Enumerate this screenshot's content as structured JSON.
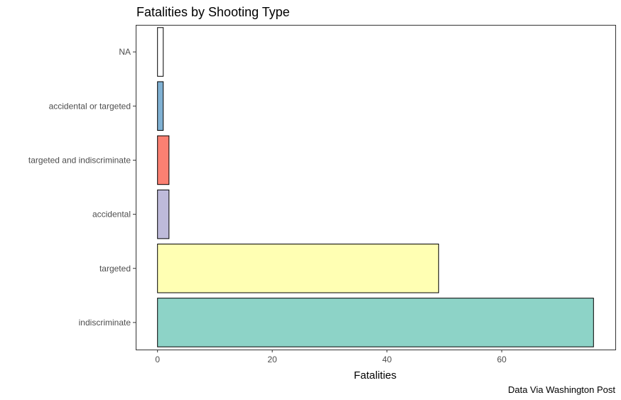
{
  "chart_data": {
    "type": "bar",
    "orientation": "horizontal",
    "title": "Fatalities by Shooting Type",
    "xlabel": "Fatalities",
    "ylabel": "",
    "caption": "Data Via Washington Post",
    "categories": [
      "NA",
      "accidental or targeted",
      "targeted and indiscriminate",
      "accidental",
      "targeted",
      "indiscriminate"
    ],
    "values": [
      1,
      1,
      2,
      2,
      49,
      76
    ],
    "colors": [
      "#FFFFFF",
      "#80B1D3",
      "#FB8072",
      "#BEBADA",
      "#FFFFB3",
      "#8DD3C7"
    ],
    "xlim": [
      -3.8,
      79.8
    ],
    "xticks": [
      0,
      20,
      40,
      60
    ],
    "grid": false,
    "legend": "none"
  }
}
